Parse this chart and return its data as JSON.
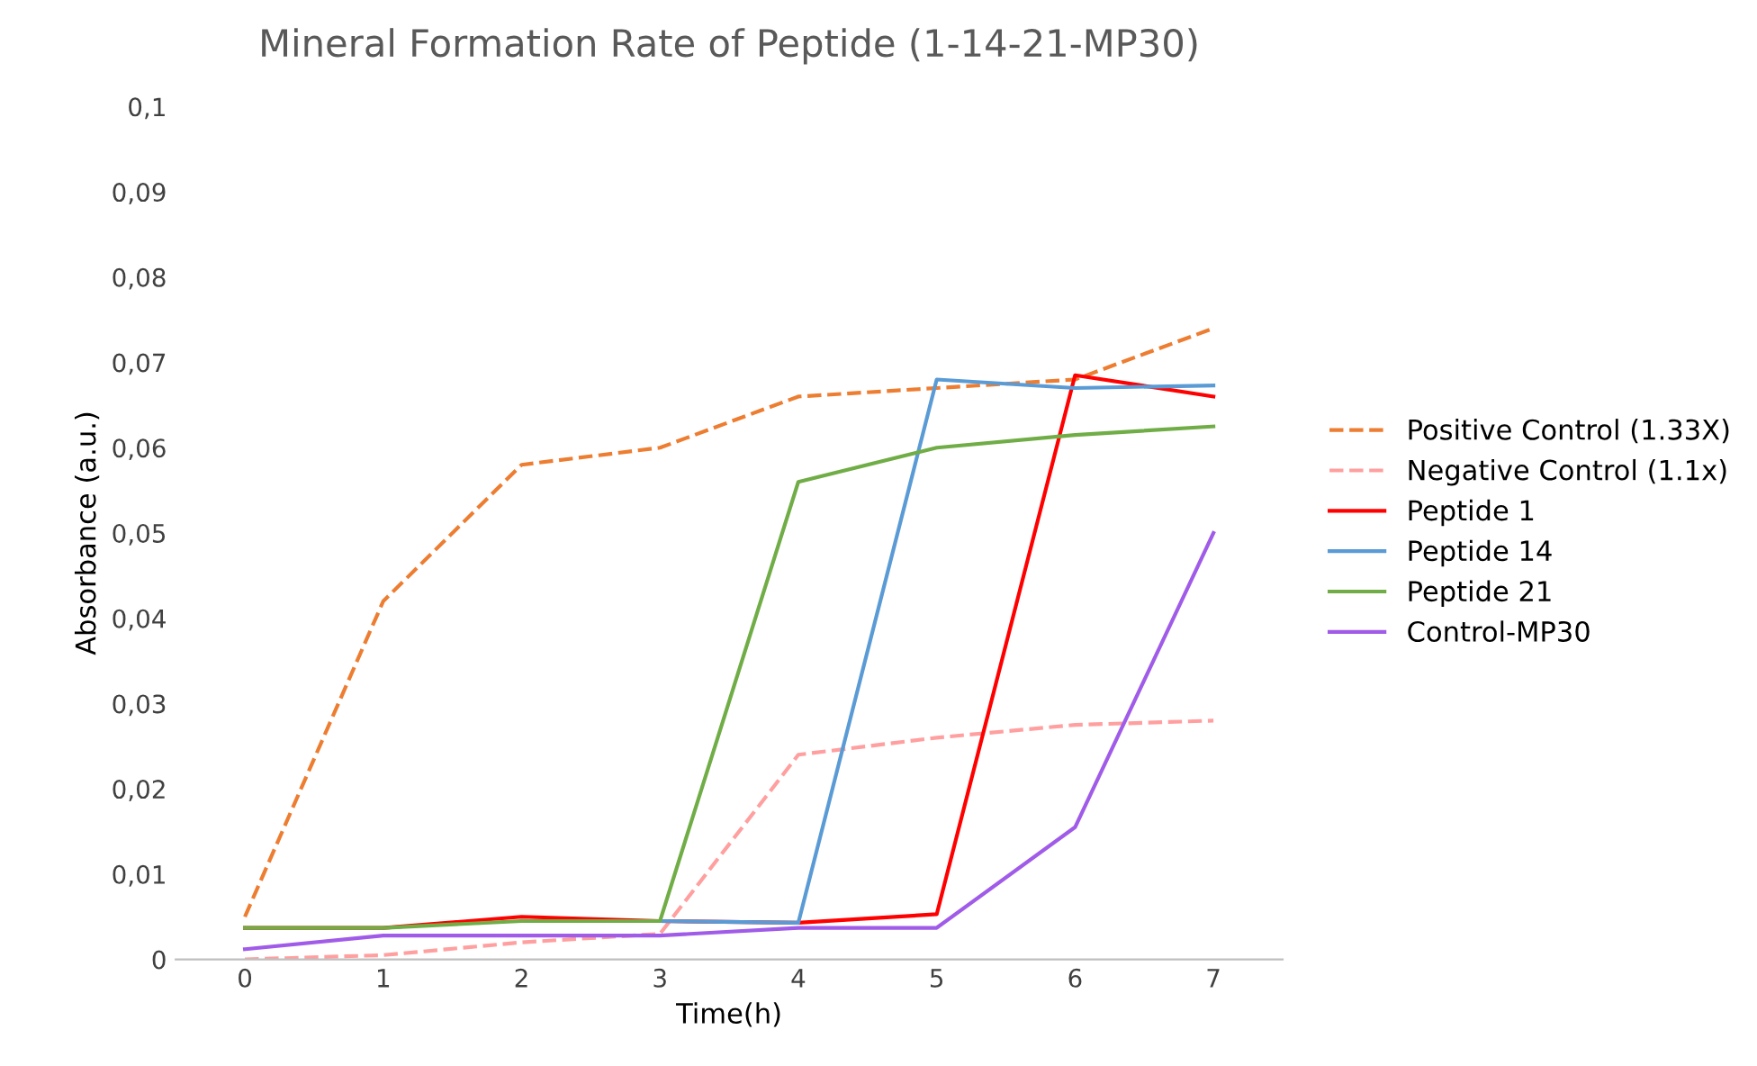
{
  "chart_data": {
    "type": "line",
    "title": "Mineral Formation Rate of Peptide (1-14-21-MP30)",
    "xlabel": "Time(h)",
    "ylabel": "Absorbance (a.u.)",
    "categories": [
      "0",
      "1",
      "2",
      "3",
      "4",
      "5",
      "6",
      "7"
    ],
    "ylim": [
      0,
      0.1
    ],
    "yticks": [
      {
        "value": 0,
        "label": "0"
      },
      {
        "value": 0.01,
        "label": "0,01"
      },
      {
        "value": 0.02,
        "label": "0,02"
      },
      {
        "value": 0.03,
        "label": "0,03"
      },
      {
        "value": 0.04,
        "label": "0,04"
      },
      {
        "value": 0.05,
        "label": "0,05"
      },
      {
        "value": 0.06,
        "label": "0,06"
      },
      {
        "value": 0.07,
        "label": "0,07"
      },
      {
        "value": 0.08,
        "label": "0,08"
      },
      {
        "value": 0.09,
        "label": "0,09"
      },
      {
        "value": 0.1,
        "label": "0,1"
      }
    ],
    "grid": false,
    "legend": "right",
    "marker": "none",
    "series": [
      {
        "name": "Positive Control (1.33X)",
        "color": "#ed7d31",
        "line_style": "dashed",
        "values": [
          0.005,
          0.042,
          0.058,
          0.06,
          0.066,
          0.067,
          0.068,
          0.074
        ]
      },
      {
        "name": "Negative Control (1.1x)",
        "color": "#ff9f9f",
        "line_style": "dashed",
        "values": [
          0.0,
          0.0005,
          0.002,
          0.003,
          0.024,
          0.026,
          0.0275,
          0.028
        ]
      },
      {
        "name": "Peptide 1",
        "color": "#ff0000",
        "line_style": "solid",
        "values": [
          0.0037,
          0.0037,
          0.005,
          0.0045,
          0.0043,
          0.0053,
          0.0685,
          0.066
        ]
      },
      {
        "name": "Peptide 14",
        "color": "#5b9bd5",
        "line_style": "solid",
        "values": [
          null,
          null,
          0.0045,
          0.0045,
          0.0043,
          0.068,
          0.067,
          0.0673
        ]
      },
      {
        "name": "Peptide 21",
        "color": "#70ad47",
        "line_style": "solid",
        "values": [
          0.0037,
          0.0037,
          0.0045,
          0.0045,
          0.056,
          0.06,
          0.0615,
          0.0625
        ]
      },
      {
        "name": "Control-MP30",
        "color": "#a05ce8",
        "line_style": "solid",
        "values": [
          0.0012,
          0.0028,
          0.0028,
          0.0028,
          0.0037,
          0.0037,
          0.0155,
          0.05
        ]
      }
    ]
  }
}
